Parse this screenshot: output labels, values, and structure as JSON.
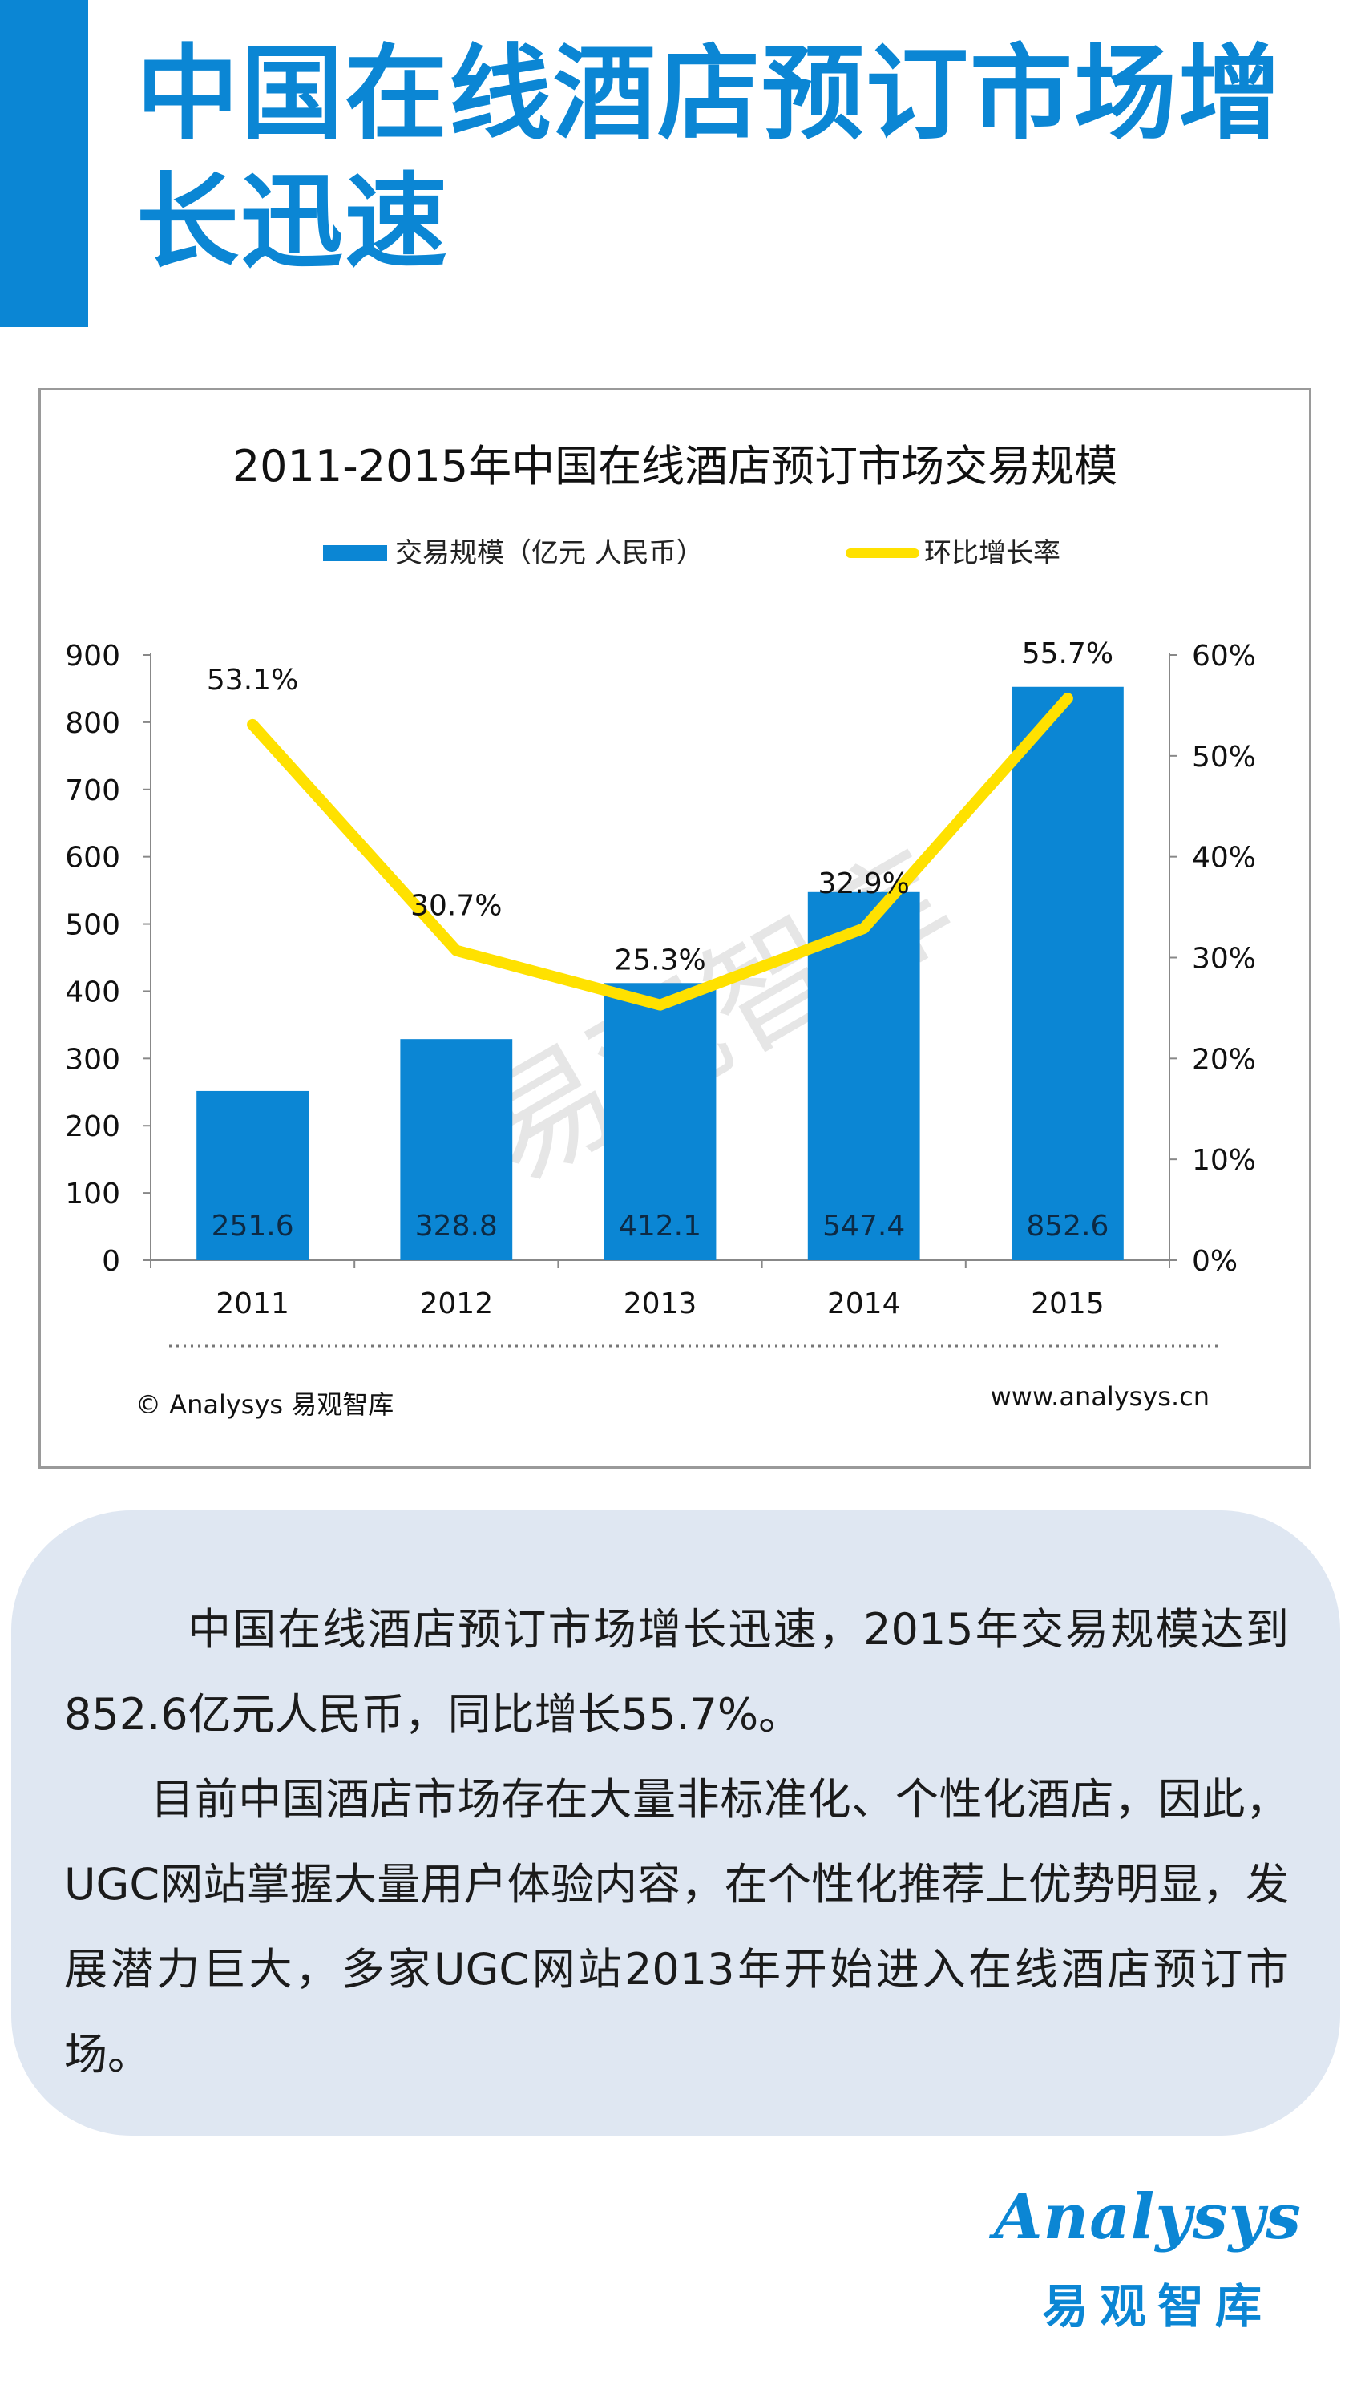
{
  "page": {
    "title": "中国在线酒店预订市场增长迅速",
    "accent_color": "#0b86d4"
  },
  "chart_data": {
    "type": "bar",
    "title": "2011-2015年中国在线酒店预订市场交易规模",
    "categories": [
      "2011",
      "2012",
      "2013",
      "2014",
      "2015"
    ],
    "series": [
      {
        "name": "交易规模（亿元 人民币）",
        "type": "bar",
        "axis": "left",
        "color": "#0b86d4",
        "values": [
          251.6,
          328.8,
          412.1,
          547.4,
          852.6
        ],
        "labels": [
          "251.6",
          "328.8",
          "412.1",
          "547.4",
          "852.6"
        ]
      },
      {
        "name": "环比增长率",
        "type": "line",
        "axis": "right",
        "color": "#ffe100",
        "values": [
          53.1,
          30.7,
          25.3,
          32.9,
          55.7
        ],
        "labels": [
          "53.1%",
          "30.7%",
          "25.3%",
          "32.9%",
          "55.7%"
        ]
      }
    ],
    "ylim": [
      0,
      900
    ],
    "yticks": [
      "0",
      "100",
      "200",
      "300",
      "400",
      "500",
      "600",
      "700",
      "800",
      "900"
    ],
    "y2lim": [
      0,
      60
    ],
    "y2ticks": [
      "0%",
      "10%",
      "20%",
      "30%",
      "40%",
      "50%",
      "60%"
    ],
    "legend_position": "top",
    "grid": false,
    "watermark": "易观智库",
    "source_left": "© Analysys 易观智库",
    "source_right": "www.analysys.cn"
  },
  "summary": {
    "paragraph1": "中国在线酒店预订市场增长迅速，2015年交易规模达到852.6亿元人民币，同比增长55.7%。",
    "paragraph2": "目前中国酒店市场存在大量非标准化、个性化酒店，因此，UGC网站掌握大量用户体验内容，在个性化推荐上优势明显，发展潜力巨大，多家UGC网站2013年开始进入在线酒店预订市场。"
  },
  "brand": {
    "logo_text": "Analysys",
    "chinese_name": "易观智库"
  }
}
